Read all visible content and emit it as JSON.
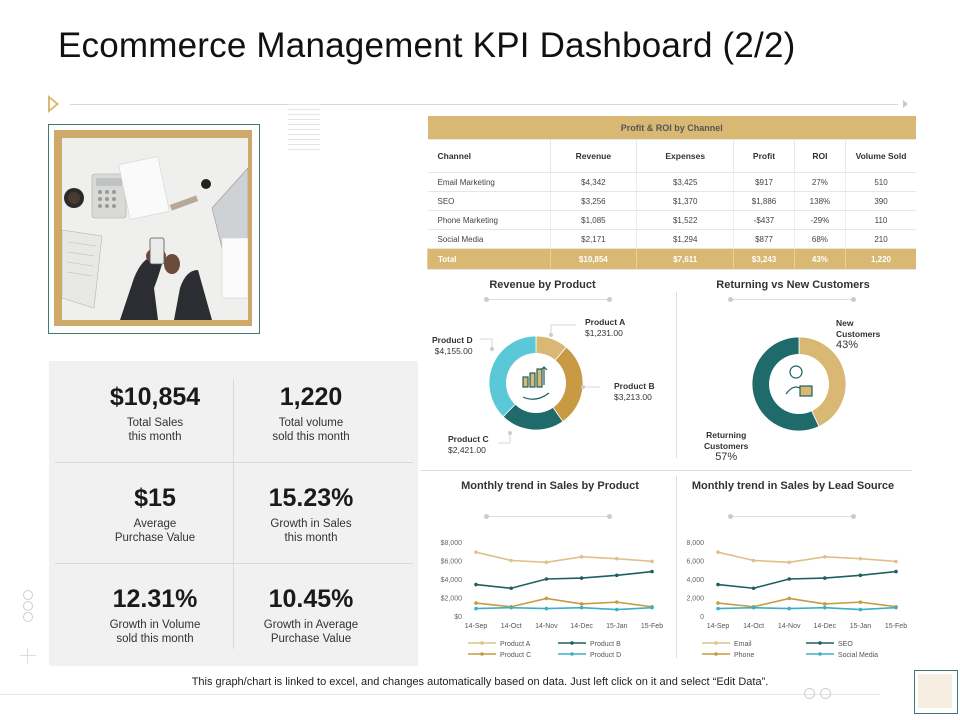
{
  "title": "Ecommerce Management KPI Dashboard (2/2)",
  "kpis": [
    {
      "value": "$10,854",
      "label": "Total Sales\nthis month"
    },
    {
      "value": "1,220",
      "label": "Total volume\nsold this month"
    },
    {
      "value": "$15",
      "label": "Average\nPurchase Value"
    },
    {
      "value": "15.23%",
      "label": "Growth in Sales\nthis month"
    },
    {
      "value": "12.31%",
      "label": "Growth in Volume\nsold this month"
    },
    {
      "value": "10.45%",
      "label": "Growth in Average\nPurchase Value"
    }
  ],
  "roi_table": {
    "title": "Profit & ROI by Channel",
    "columns": [
      "Channel",
      "Revenue",
      "Expenses",
      "Profit",
      "ROI",
      "Volume Sold"
    ],
    "rows": [
      [
        "Email Marketing",
        "$4,342",
        "$3,425",
        "$917",
        "27%",
        "510"
      ],
      [
        "SEO",
        "$3,256",
        "$1,370",
        "$1,886",
        "138%",
        "390"
      ],
      [
        "Phone Marketing",
        "$1,085",
        "$1,522",
        "-$437",
        "-29%",
        "110"
      ],
      [
        "Social Media",
        "$2,171",
        "$1,294",
        "$877",
        "68%",
        "210"
      ]
    ],
    "total": [
      "Total",
      "$10,854",
      "$7,611",
      "$3,243",
      "43%",
      "1,220"
    ]
  },
  "revenue_by_product": {
    "title": "Revenue by Product",
    "items": [
      {
        "name": "Product A",
        "value": 1231.0,
        "label": "$1,231.00",
        "color": "#d9b874"
      },
      {
        "name": "Product B",
        "value": 3213.0,
        "label": "$3,213.00",
        "color": "#c79a43"
      },
      {
        "name": "Product C",
        "value": 2421.0,
        "label": "$2,421.00",
        "color": "#1f6a6a"
      },
      {
        "name": "Product D",
        "value": 4155.0,
        "label": "$4,155.00",
        "color": "#5bc8d8"
      }
    ]
  },
  "returning_vs_new": {
    "title": "Returning vs New Customers",
    "new": {
      "label": "New\nCustomers",
      "pct": "43%",
      "value": 43,
      "color": "#d9b874"
    },
    "returning": {
      "label": "Returning\nCustomers",
      "pct": "57%",
      "value": 57,
      "color": "#1f6a6a"
    }
  },
  "chart_data": [
    {
      "type": "line",
      "title": "Monthly trend in Sales by Product",
      "categories": [
        "14-Sep",
        "14-Oct",
        "14-Nov",
        "14-Dec",
        "15-Jan",
        "15-Feb"
      ],
      "yticks": [
        "$0",
        "$2,000",
        "$4,000",
        "$6,000",
        "$8,000"
      ],
      "ylim": [
        0,
        8000
      ],
      "series": [
        {
          "name": "Product A",
          "color": "#e0c08a",
          "values": [
            6900,
            6000,
            5800,
            6400,
            6200,
            5900
          ]
        },
        {
          "name": "Product B",
          "color": "#1f5f5f",
          "values": [
            3400,
            3000,
            4000,
            4100,
            4400,
            4800
          ]
        },
        {
          "name": "Product C",
          "color": "#c79a43",
          "values": [
            1400,
            1000,
            1900,
            1300,
            1500,
            1000
          ]
        },
        {
          "name": "Product D",
          "color": "#3bb0c4",
          "values": [
            800,
            900,
            800,
            900,
            700,
            900
          ]
        }
      ],
      "legend": "bottom"
    },
    {
      "type": "line",
      "title": "Monthly trend in Sales by Lead Source",
      "categories": [
        "14-Sep",
        "14-Oct",
        "14-Nov",
        "14-Dec",
        "15-Jan",
        "15-Feb"
      ],
      "yticks": [
        "0",
        "2,000",
        "4,000",
        "6,000",
        "8,000"
      ],
      "ylim": [
        0,
        8000
      ],
      "series": [
        {
          "name": "Email",
          "color": "#e0c08a",
          "values": [
            6900,
            6000,
            5800,
            6400,
            6200,
            5900
          ]
        },
        {
          "name": "SEO",
          "color": "#1f5f5f",
          "values": [
            3400,
            3000,
            4000,
            4100,
            4400,
            4800
          ]
        },
        {
          "name": "Phone",
          "color": "#c79a43",
          "values": [
            1400,
            1000,
            1900,
            1300,
            1500,
            1000
          ]
        },
        {
          "name": "Social Media",
          "color": "#3bb0c4",
          "values": [
            800,
            900,
            800,
            900,
            700,
            900
          ]
        }
      ],
      "legend": "bottom"
    }
  ],
  "footer": "This graph/chart is linked to excel, and changes automatically based on data. Just left click on it and select “Edit Data”."
}
